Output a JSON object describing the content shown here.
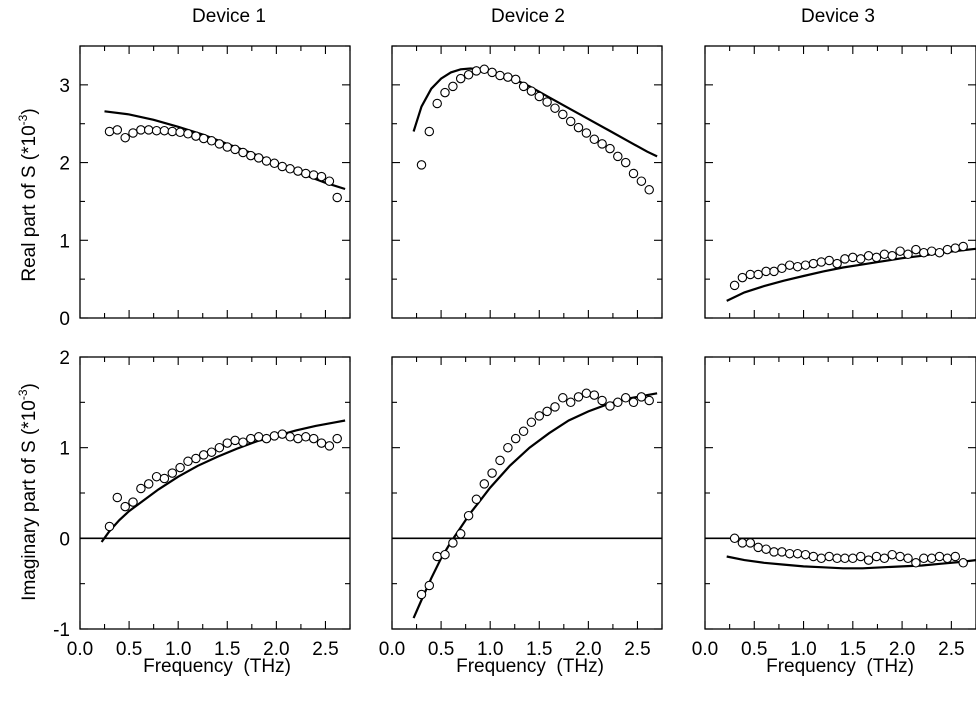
{
  "chart_data": {
    "type": "scatter",
    "columns": [
      "Device 1",
      "Device 2",
      "Device 3"
    ],
    "xlabel": "Frequency  (THz)",
    "xlim": [
      0.0,
      2.75
    ],
    "xticks": [
      0.0,
      0.5,
      1.0,
      1.5,
      2.0,
      2.5
    ],
    "xtick_labels": [
      "0.0",
      "0.5",
      "1.0",
      "1.5",
      "2.0",
      "2.5"
    ],
    "rows": [
      {
        "ylabel": "Real part of S  (*10",
        "ylabel_sup": "-3",
        "ylabel_end": ")",
        "ylim": [
          0,
          3.5
        ],
        "yticks": [
          0,
          1,
          2,
          3
        ],
        "ytick_labels": [
          "0",
          "1",
          "2",
          "3"
        ],
        "zero_line": false
      },
      {
        "ylabel": "Imaginary part of S  (*10",
        "ylabel_sup": "-3",
        "ylabel_end": ")",
        "ylim": [
          -1,
          2
        ],
        "yticks": [
          -1,
          0,
          1,
          2
        ],
        "ytick_labels": [
          "-1",
          "0",
          "1",
          "2"
        ],
        "zero_line": true
      }
    ],
    "panels": [
      {
        "row": 0,
        "col": 0,
        "points": {
          "x": [
            0.3,
            0.38,
            0.46,
            0.54,
            0.62,
            0.7,
            0.78,
            0.86,
            0.94,
            1.02,
            1.1,
            1.18,
            1.26,
            1.34,
            1.42,
            1.5,
            1.58,
            1.66,
            1.74,
            1.82,
            1.9,
            1.98,
            2.06,
            2.14,
            2.22,
            2.3,
            2.38,
            2.46,
            2.54,
            2.62
          ],
          "y": [
            2.4,
            2.42,
            2.32,
            2.38,
            2.42,
            2.42,
            2.41,
            2.41,
            2.4,
            2.39,
            2.37,
            2.34,
            2.31,
            2.28,
            2.24,
            2.2,
            2.17,
            2.13,
            2.09,
            2.06,
            2.02,
            1.99,
            1.95,
            1.92,
            1.89,
            1.86,
            1.84,
            1.82,
            1.76,
            1.55
          ]
        },
        "curve": {
          "x": [
            0.25,
            0.5,
            0.75,
            1.0,
            1.25,
            1.5,
            1.75,
            2.0,
            2.25,
            2.5,
            2.7
          ],
          "y": [
            2.66,
            2.62,
            2.55,
            2.46,
            2.36,
            2.24,
            2.12,
            1.99,
            1.86,
            1.74,
            1.66
          ]
        }
      },
      {
        "row": 0,
        "col": 1,
        "points": {
          "x": [
            0.3,
            0.38,
            0.46,
            0.54,
            0.62,
            0.7,
            0.78,
            0.86,
            0.94,
            1.02,
            1.1,
            1.18,
            1.26,
            1.34,
            1.42,
            1.5,
            1.58,
            1.66,
            1.74,
            1.82,
            1.9,
            1.98,
            2.06,
            2.14,
            2.22,
            2.3,
            2.38,
            2.46,
            2.54,
            2.62
          ],
          "y": [
            1.97,
            2.4,
            2.76,
            2.9,
            2.98,
            3.08,
            3.13,
            3.18,
            3.2,
            3.16,
            3.12,
            3.1,
            3.07,
            2.98,
            2.92,
            2.85,
            2.78,
            2.7,
            2.62,
            2.53,
            2.45,
            2.38,
            2.3,
            2.24,
            2.18,
            2.08,
            2.0,
            1.86,
            1.76,
            1.65
          ]
        },
        "curve": {
          "x": [
            0.22,
            0.3,
            0.4,
            0.5,
            0.6,
            0.7,
            0.8,
            0.9,
            1.0,
            1.2,
            1.4,
            1.6,
            1.8,
            2.0,
            2.2,
            2.4,
            2.6,
            2.7
          ],
          "y": [
            2.4,
            2.72,
            2.95,
            3.08,
            3.16,
            3.2,
            3.21,
            3.2,
            3.18,
            3.1,
            2.98,
            2.84,
            2.7,
            2.56,
            2.42,
            2.28,
            2.14,
            2.08
          ]
        }
      },
      {
        "row": 0,
        "col": 2,
        "points": {
          "x": [
            0.3,
            0.38,
            0.46,
            0.54,
            0.62,
            0.7,
            0.78,
            0.86,
            0.94,
            1.02,
            1.1,
            1.18,
            1.26,
            1.34,
            1.42,
            1.5,
            1.58,
            1.66,
            1.74,
            1.82,
            1.9,
            1.98,
            2.06,
            2.14,
            2.22,
            2.3,
            2.38,
            2.46,
            2.54,
            2.62
          ],
          "y": [
            0.42,
            0.52,
            0.56,
            0.56,
            0.6,
            0.6,
            0.64,
            0.68,
            0.66,
            0.68,
            0.7,
            0.72,
            0.74,
            0.7,
            0.76,
            0.78,
            0.76,
            0.8,
            0.78,
            0.82,
            0.8,
            0.86,
            0.82,
            0.88,
            0.84,
            0.86,
            0.84,
            0.88,
            0.9,
            0.92
          ]
        },
        "curve": {
          "x": [
            0.22,
            0.4,
            0.6,
            0.8,
            1.0,
            1.2,
            1.4,
            1.6,
            1.8,
            2.0,
            2.2,
            2.4,
            2.6,
            2.75
          ],
          "y": [
            0.22,
            0.33,
            0.41,
            0.48,
            0.54,
            0.6,
            0.65,
            0.69,
            0.73,
            0.77,
            0.8,
            0.84,
            0.87,
            0.89
          ]
        }
      },
      {
        "row": 1,
        "col": 0,
        "points": {
          "x": [
            0.3,
            0.38,
            0.46,
            0.54,
            0.62,
            0.7,
            0.78,
            0.86,
            0.94,
            1.02,
            1.1,
            1.18,
            1.26,
            1.34,
            1.42,
            1.5,
            1.58,
            1.66,
            1.74,
            1.82,
            1.9,
            1.98,
            2.06,
            2.14,
            2.22,
            2.3,
            2.38,
            2.46,
            2.54,
            2.62
          ],
          "y": [
            0.13,
            0.45,
            0.35,
            0.4,
            0.55,
            0.6,
            0.68,
            0.66,
            0.72,
            0.78,
            0.85,
            0.88,
            0.92,
            0.95,
            1.0,
            1.05,
            1.08,
            1.06,
            1.1,
            1.12,
            1.1,
            1.13,
            1.15,
            1.12,
            1.1,
            1.12,
            1.1,
            1.05,
            1.02,
            1.1
          ]
        },
        "curve": {
          "x": [
            0.22,
            0.3,
            0.4,
            0.5,
            0.6,
            0.7,
            0.8,
            1.0,
            1.2,
            1.4,
            1.6,
            1.8,
            2.0,
            2.2,
            2.4,
            2.6,
            2.7
          ],
          "y": [
            -0.04,
            0.08,
            0.2,
            0.3,
            0.38,
            0.46,
            0.54,
            0.68,
            0.8,
            0.9,
            0.99,
            1.07,
            1.13,
            1.19,
            1.24,
            1.28,
            1.3
          ]
        }
      },
      {
        "row": 1,
        "col": 1,
        "points": {
          "x": [
            0.3,
            0.38,
            0.46,
            0.54,
            0.62,
            0.7,
            0.78,
            0.86,
            0.94,
            1.02,
            1.1,
            1.18,
            1.26,
            1.34,
            1.42,
            1.5,
            1.58,
            1.66,
            1.74,
            1.82,
            1.9,
            1.98,
            2.06,
            2.14,
            2.22,
            2.3,
            2.38,
            2.46,
            2.54,
            2.62
          ],
          "y": [
            -0.62,
            -0.52,
            -0.2,
            -0.18,
            -0.05,
            0.05,
            0.25,
            0.43,
            0.6,
            0.72,
            0.86,
            1.0,
            1.1,
            1.18,
            1.28,
            1.35,
            1.4,
            1.45,
            1.55,
            1.5,
            1.56,
            1.6,
            1.58,
            1.52,
            1.46,
            1.5,
            1.55,
            1.5,
            1.56,
            1.52
          ]
        },
        "curve": {
          "x": [
            0.22,
            0.3,
            0.4,
            0.5,
            0.6,
            0.7,
            0.8,
            0.9,
            1.0,
            1.2,
            1.4,
            1.6,
            1.8,
            2.0,
            2.2,
            2.4,
            2.6,
            2.7
          ],
          "y": [
            -0.88,
            -0.68,
            -0.44,
            -0.22,
            -0.04,
            0.12,
            0.28,
            0.42,
            0.56,
            0.8,
            1.0,
            1.16,
            1.3,
            1.4,
            1.48,
            1.54,
            1.58,
            1.6
          ]
        }
      },
      {
        "row": 1,
        "col": 2,
        "points": {
          "x": [
            0.3,
            0.38,
            0.46,
            0.54,
            0.62,
            0.7,
            0.78,
            0.86,
            0.94,
            1.02,
            1.1,
            1.18,
            1.26,
            1.34,
            1.42,
            1.5,
            1.58,
            1.66,
            1.74,
            1.82,
            1.9,
            1.98,
            2.06,
            2.14,
            2.22,
            2.3,
            2.38,
            2.46,
            2.54,
            2.62
          ],
          "y": [
            0.0,
            -0.05,
            -0.05,
            -0.1,
            -0.12,
            -0.15,
            -0.15,
            -0.17,
            -0.17,
            -0.18,
            -0.2,
            -0.22,
            -0.2,
            -0.22,
            -0.22,
            -0.22,
            -0.2,
            -0.24,
            -0.2,
            -0.22,
            -0.18,
            -0.2,
            -0.22,
            -0.27,
            -0.22,
            -0.22,
            -0.2,
            -0.22,
            -0.2,
            -0.27
          ]
        },
        "curve": {
          "x": [
            0.22,
            0.4,
            0.6,
            0.8,
            1.0,
            1.2,
            1.4,
            1.6,
            1.8,
            2.0,
            2.2,
            2.4,
            2.6,
            2.75
          ],
          "y": [
            -0.2,
            -0.24,
            -0.27,
            -0.29,
            -0.31,
            -0.32,
            -0.33,
            -0.33,
            -0.32,
            -0.31,
            -0.3,
            -0.28,
            -0.26,
            -0.24
          ]
        }
      }
    ]
  }
}
